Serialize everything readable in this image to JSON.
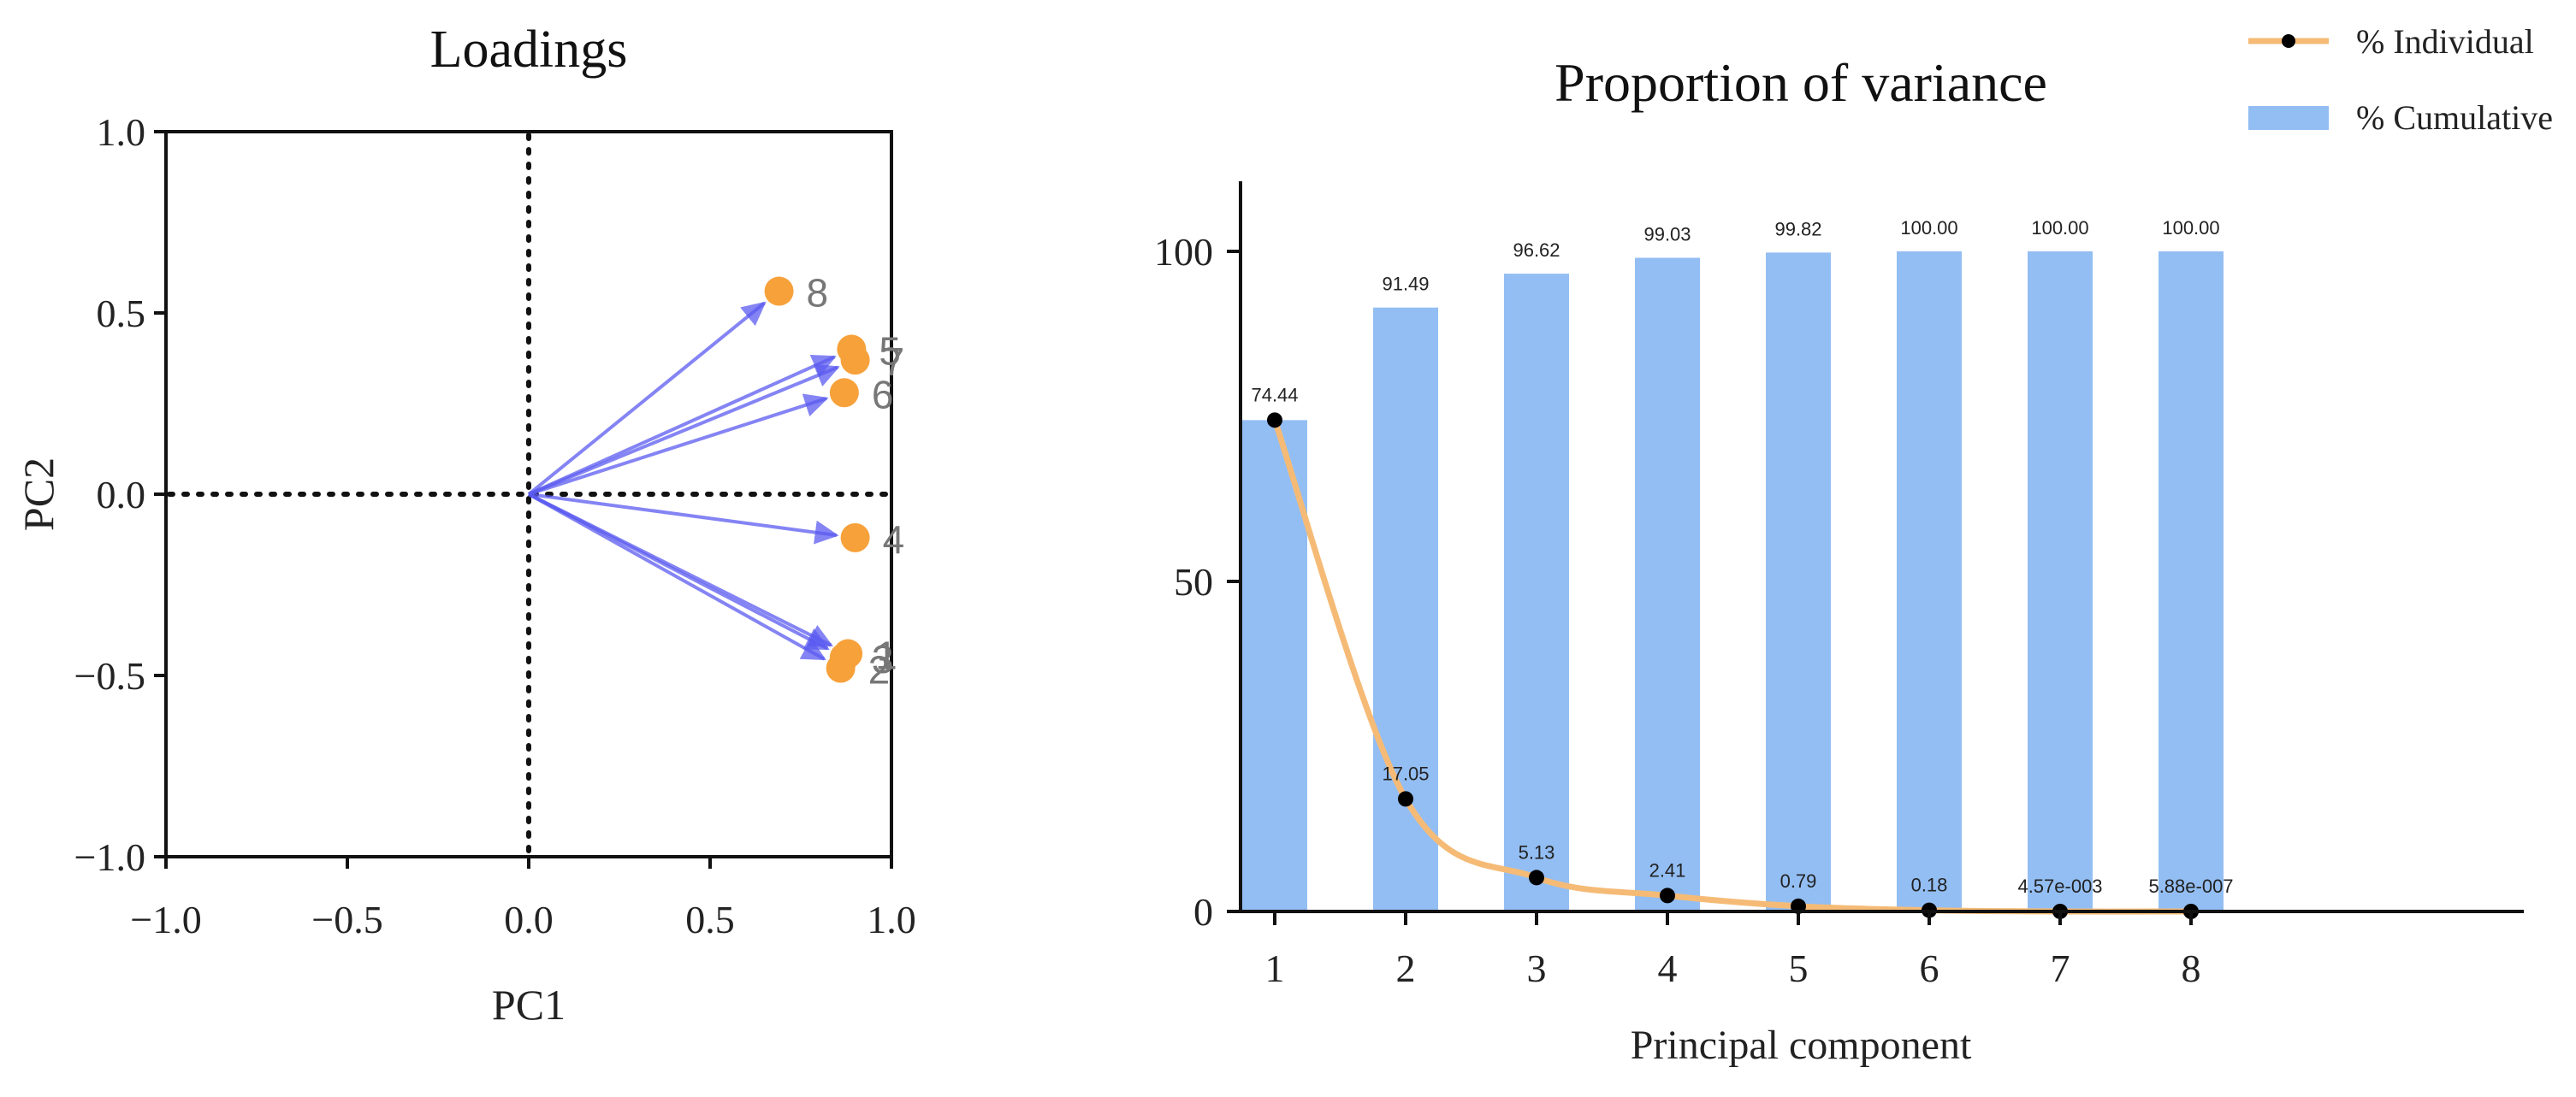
{
  "chart_data": [
    {
      "type": "scatter",
      "title": "Loadings",
      "xlabel": "PC1",
      "ylabel": "PC2",
      "xlim": [
        -1.0,
        1.0
      ],
      "ylim": [
        -1.0,
        1.0
      ],
      "x_ticks": [
        "−1.0",
        "−0.5",
        "0.0",
        "0.5",
        "1.0"
      ],
      "y_ticks": [
        "1.0",
        "0.5",
        "0.0",
        "−0.5",
        "−1.0"
      ],
      "reference_lines": "dotted lines at x = 0 and y = 0",
      "arrows_from_origin": true,
      "points": [
        {
          "label": "1",
          "x": 0.88,
          "y": -0.44
        },
        {
          "label": "2",
          "x": 0.86,
          "y": -0.48
        },
        {
          "label": "3",
          "x": 0.87,
          "y": -0.45
        },
        {
          "label": "4",
          "x": 0.9,
          "y": -0.12
        },
        {
          "label": "5",
          "x": 0.89,
          "y": 0.4
        },
        {
          "label": "6",
          "x": 0.87,
          "y": 0.28
        },
        {
          "label": "7",
          "x": 0.9,
          "y": 0.37
        },
        {
          "label": "8",
          "x": 0.69,
          "y": 0.56
        }
      ],
      "colors": {
        "point": "#f7a13a",
        "arrow": "#5b5bf0",
        "label": "#777777"
      }
    },
    {
      "type": "bar",
      "title": "Proportion of variance",
      "xlabel": "Principal component",
      "ylabel": "",
      "ylim": [
        0,
        110
      ],
      "y_ticks": [
        0,
        50,
        100
      ],
      "categories": [
        "1",
        "2",
        "3",
        "4",
        "5",
        "6",
        "7",
        "8"
      ],
      "series": [
        {
          "name": "% Cumulative",
          "kind": "bar",
          "color": "#93bef3",
          "values": [
            74.44,
            91.49,
            96.62,
            99.03,
            99.82,
            100.0,
            100.0,
            100.0
          ],
          "labels": [
            "74.44",
            "91.49",
            "96.62",
            "99.03",
            "99.82",
            "100.00",
            "100.00",
            "100.00"
          ]
        },
        {
          "name": "% Individual",
          "kind": "line",
          "color": "#f5bb76",
          "marker_color": "#000000",
          "values": [
            74.44,
            17.05,
            5.13,
            2.41,
            0.79,
            0.18,
            0.00457,
            5.88e-07
          ],
          "labels": [
            "74.44",
            "17.05",
            "5.13",
            "2.41",
            "0.79",
            "0.18",
            "4.57e-003",
            "5.88e-007"
          ]
        }
      ],
      "legend": {
        "position": "top-right",
        "entries": [
          "% Individual",
          "% Cumulative"
        ]
      }
    }
  ]
}
